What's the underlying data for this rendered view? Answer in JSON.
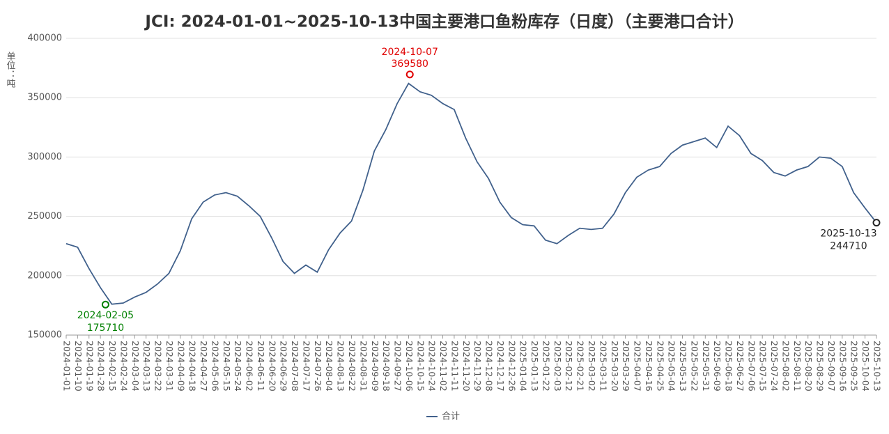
{
  "chart_data": {
    "type": "line",
    "title": "JCI: 2024-01-01~2025-10-13中国主要港口鱼粉库存（日度）（主要港口合计）",
    "y_label": "单位：吨",
    "categories": [
      "2024-01-01",
      "2024-01-10",
      "2024-01-19",
      "2024-01-28",
      "2024-02-15",
      "2024-02-24",
      "2024-03-04",
      "2024-03-13",
      "2024-03-22",
      "2024-03-31",
      "2024-04-09",
      "2024-04-18",
      "2024-04-27",
      "2024-05-06",
      "2024-05-15",
      "2024-05-24",
      "2024-06-02",
      "2024-06-11",
      "2024-06-20",
      "2024-06-29",
      "2024-07-08",
      "2024-07-17",
      "2024-07-26",
      "2024-08-04",
      "2024-08-13",
      "2024-08-22",
      "2024-08-31",
      "2024-09-09",
      "2024-09-18",
      "2024-09-27",
      "2024-10-06",
      "2024-10-15",
      "2024-10-24",
      "2024-11-02",
      "2024-11-11",
      "2024-11-20",
      "2024-11-29",
      "2024-12-08",
      "2024-12-17",
      "2024-12-26",
      "2025-01-04",
      "2025-01-13",
      "2025-01-22",
      "2025-02-03",
      "2025-02-12",
      "2025-02-21",
      "2025-03-02",
      "2025-03-11",
      "2025-03-20",
      "2025-03-29",
      "2025-04-07",
      "2025-04-16",
      "2025-04-25",
      "2025-05-04",
      "2025-05-13",
      "2025-05-22",
      "2025-05-31",
      "2025-06-09",
      "2025-06-18",
      "2025-06-27",
      "2025-07-06",
      "2025-07-15",
      "2025-07-24",
      "2025-08-02",
      "2025-08-11",
      "2025-08-20",
      "2025-08-29",
      "2025-09-07",
      "2025-09-16",
      "2025-09-25",
      "2025-10-04",
      "2025-10-13"
    ],
    "series": [
      {
        "name": "合计",
        "color": "#41618c",
        "values": [
          227000,
          224000,
          206000,
          190000,
          176000,
          177000,
          182000,
          186000,
          193000,
          202000,
          221000,
          248000,
          262000,
          268000,
          270000,
          267000,
          259000,
          250000,
          232000,
          212000,
          202000,
          209000,
          203000,
          222000,
          236000,
          246000,
          272000,
          305000,
          323000,
          345000,
          362000,
          355000,
          352000,
          345000,
          340000,
          316000,
          296000,
          282000,
          262000,
          249000,
          243000,
          242000,
          230000,
          227000,
          234000,
          240000,
          239000,
          240000,
          252000,
          270000,
          283000,
          289000,
          292000,
          303000,
          310000,
          313000,
          316000,
          308000,
          326000,
          318000,
          303000,
          297000,
          287000,
          284000,
          289000,
          292000,
          300000,
          299000,
          292000,
          270000,
          257000,
          244710
        ]
      }
    ],
    "annotations": [
      {
        "x": "2024-02-05",
        "value": 175710,
        "color": "#008000",
        "position": "below"
      },
      {
        "x": "2024-10-07",
        "value": 369580,
        "color": "#e00000",
        "position": "above"
      },
      {
        "x": "2025-10-13",
        "value": 244710,
        "color": "#222222",
        "position": "below"
      }
    ],
    "ylim": [
      150000,
      400000
    ],
    "yticks": [
      150000,
      200000,
      250000,
      300000,
      350000,
      400000
    ],
    "grid": true,
    "legend": "bottom"
  }
}
